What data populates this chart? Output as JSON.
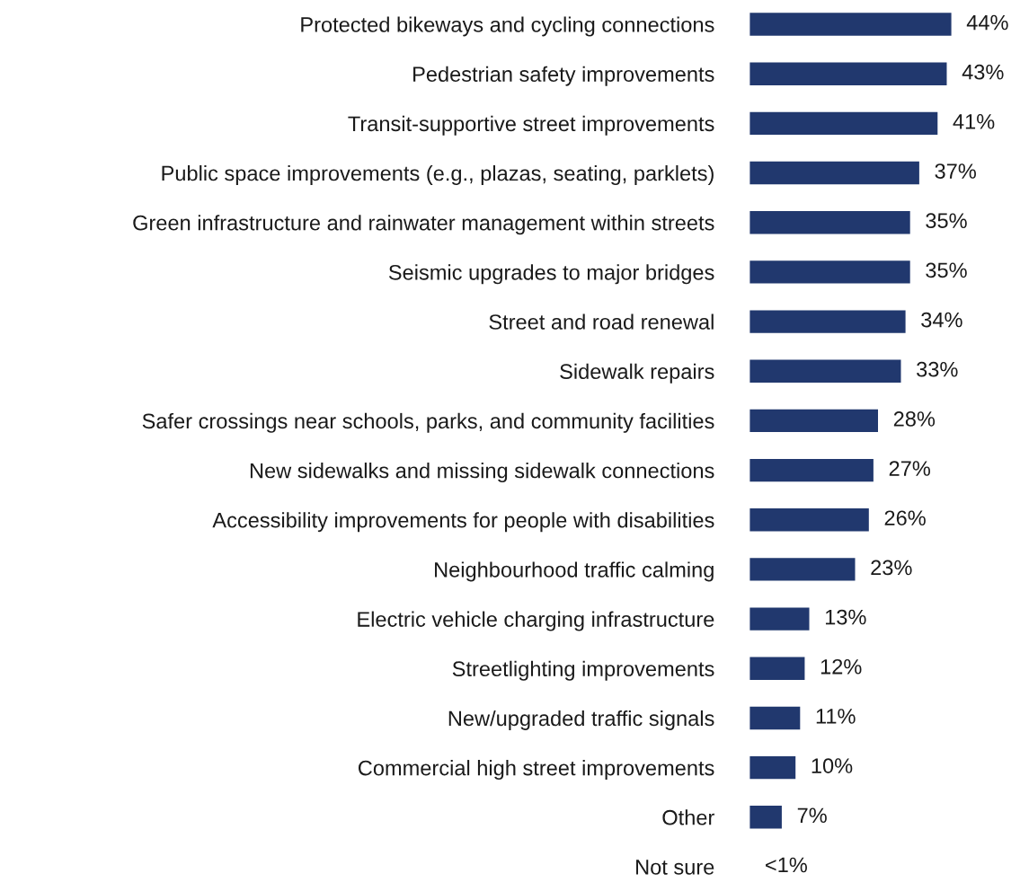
{
  "chart_data": {
    "type": "bar",
    "orientation": "horizontal",
    "categories": [
      "Protected bikeways and cycling connections",
      "Pedestrian safety improvements",
      "Transit-supportive street improvements",
      "Public space improvements (e.g., plazas, seating, parklets)",
      "Green infrastructure and rainwater management within streets",
      "Seismic upgrades to major bridges",
      "Street and road renewal",
      "Sidewalk repairs",
      "Safer crossings near schools, parks, and community facilities",
      "New sidewalks and missing sidewalk connections",
      "Accessibility improvements for people with disabilities",
      "Neighbourhood traffic calming",
      "Electric vehicle charging infrastructure",
      "Streetlighting improvements",
      "New/upgraded traffic signals",
      "Commercial high street improvements",
      "Other",
      "Not sure"
    ],
    "values": [
      44,
      43,
      41,
      37,
      35,
      35,
      34,
      33,
      28,
      27,
      26,
      23,
      13,
      12,
      11,
      10,
      7,
      0
    ],
    "value_labels": [
      "44%",
      "43%",
      "41%",
      "37%",
      "35%",
      "35%",
      "34%",
      "33%",
      "28%",
      "27%",
      "26%",
      "23%",
      "13%",
      "12%",
      "11%",
      "10%",
      "7%",
      "<1%"
    ],
    "color": "#21386e",
    "grid": false,
    "legend": false
  }
}
